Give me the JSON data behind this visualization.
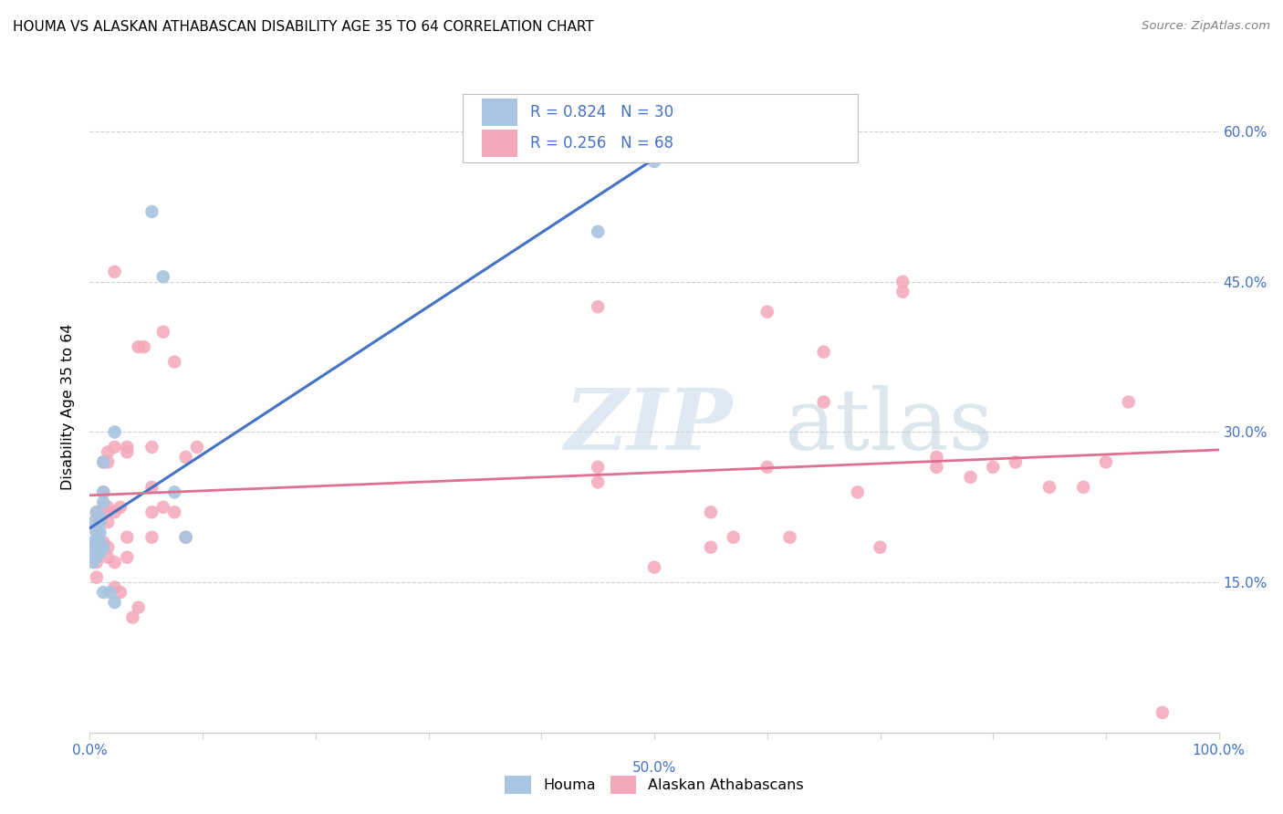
{
  "title": "HOUMA VS ALASKAN ATHABASCAN DISABILITY AGE 35 TO 64 CORRELATION CHART",
  "source": "Source: ZipAtlas.com",
  "ylabel": "Disability Age 35 to 64",
  "xlim": [
    0.0,
    1.0
  ],
  "ylim": [
    0.0,
    0.65
  ],
  "yticks": [
    0.0,
    0.15,
    0.3,
    0.45,
    0.6
  ],
  "yticklabels": [
    "",
    "15.0%",
    "30.0%",
    "45.0%",
    "60.0%"
  ],
  "houma_R": 0.824,
  "houma_N": 30,
  "alaskan_R": 0.256,
  "alaskan_N": 68,
  "houma_color": "#a8c4e0",
  "alaskan_color": "#f4a7b9",
  "houma_line_color": "#4472c4",
  "alaskan_line_color": "#e07090",
  "watermark_zip": "ZIP",
  "watermark_atlas": "atlas",
  "watermark_color_zip": "#c0d4e8",
  "watermark_color_atlas": "#b8ccd8",
  "legend_color": "#4472c4",
  "axis_color": "#4472c4",
  "grid_color": "#d0d0d0",
  "houma_points": [
    [
      0.003,
      0.21
    ],
    [
      0.003,
      0.19
    ],
    [
      0.003,
      0.18
    ],
    [
      0.003,
      0.17
    ],
    [
      0.006,
      0.22
    ],
    [
      0.006,
      0.2
    ],
    [
      0.006,
      0.19
    ],
    [
      0.006,
      0.185
    ],
    [
      0.006,
      0.18
    ],
    [
      0.006,
      0.175
    ],
    [
      0.009,
      0.215
    ],
    [
      0.009,
      0.21
    ],
    [
      0.009,
      0.2
    ],
    [
      0.009,
      0.19
    ],
    [
      0.009,
      0.185
    ],
    [
      0.009,
      0.18
    ],
    [
      0.012,
      0.27
    ],
    [
      0.012,
      0.24
    ],
    [
      0.012,
      0.23
    ],
    [
      0.012,
      0.185
    ],
    [
      0.012,
      0.14
    ],
    [
      0.018,
      0.14
    ],
    [
      0.022,
      0.3
    ],
    [
      0.022,
      0.13
    ],
    [
      0.055,
      0.52
    ],
    [
      0.065,
      0.455
    ],
    [
      0.075,
      0.24
    ],
    [
      0.085,
      0.195
    ],
    [
      0.45,
      0.5
    ],
    [
      0.5,
      0.57
    ]
  ],
  "alaskan_points": [
    [
      0.006,
      0.22
    ],
    [
      0.006,
      0.2
    ],
    [
      0.006,
      0.19
    ],
    [
      0.006,
      0.17
    ],
    [
      0.006,
      0.155
    ],
    [
      0.012,
      0.27
    ],
    [
      0.012,
      0.24
    ],
    [
      0.012,
      0.225
    ],
    [
      0.012,
      0.22
    ],
    [
      0.012,
      0.19
    ],
    [
      0.016,
      0.28
    ],
    [
      0.016,
      0.27
    ],
    [
      0.016,
      0.225
    ],
    [
      0.016,
      0.21
    ],
    [
      0.016,
      0.185
    ],
    [
      0.016,
      0.175
    ],
    [
      0.022,
      0.46
    ],
    [
      0.022,
      0.285
    ],
    [
      0.022,
      0.22
    ],
    [
      0.022,
      0.17
    ],
    [
      0.022,
      0.145
    ],
    [
      0.027,
      0.225
    ],
    [
      0.027,
      0.14
    ],
    [
      0.033,
      0.285
    ],
    [
      0.033,
      0.28
    ],
    [
      0.033,
      0.195
    ],
    [
      0.033,
      0.175
    ],
    [
      0.038,
      0.115
    ],
    [
      0.043,
      0.385
    ],
    [
      0.043,
      0.125
    ],
    [
      0.048,
      0.385
    ],
    [
      0.055,
      0.285
    ],
    [
      0.055,
      0.245
    ],
    [
      0.055,
      0.22
    ],
    [
      0.055,
      0.195
    ],
    [
      0.065,
      0.4
    ],
    [
      0.065,
      0.225
    ],
    [
      0.075,
      0.37
    ],
    [
      0.075,
      0.22
    ],
    [
      0.085,
      0.275
    ],
    [
      0.085,
      0.195
    ],
    [
      0.095,
      0.285
    ],
    [
      0.45,
      0.425
    ],
    [
      0.45,
      0.265
    ],
    [
      0.45,
      0.25
    ],
    [
      0.5,
      0.165
    ],
    [
      0.55,
      0.185
    ],
    [
      0.55,
      0.22
    ],
    [
      0.57,
      0.195
    ],
    [
      0.6,
      0.42
    ],
    [
      0.6,
      0.265
    ],
    [
      0.62,
      0.195
    ],
    [
      0.65,
      0.38
    ],
    [
      0.65,
      0.33
    ],
    [
      0.68,
      0.24
    ],
    [
      0.7,
      0.185
    ],
    [
      0.72,
      0.45
    ],
    [
      0.72,
      0.44
    ],
    [
      0.75,
      0.275
    ],
    [
      0.75,
      0.265
    ],
    [
      0.78,
      0.255
    ],
    [
      0.8,
      0.265
    ],
    [
      0.82,
      0.27
    ],
    [
      0.85,
      0.245
    ],
    [
      0.88,
      0.245
    ],
    [
      0.9,
      0.27
    ],
    [
      0.92,
      0.33
    ],
    [
      0.95,
      0.02
    ]
  ]
}
